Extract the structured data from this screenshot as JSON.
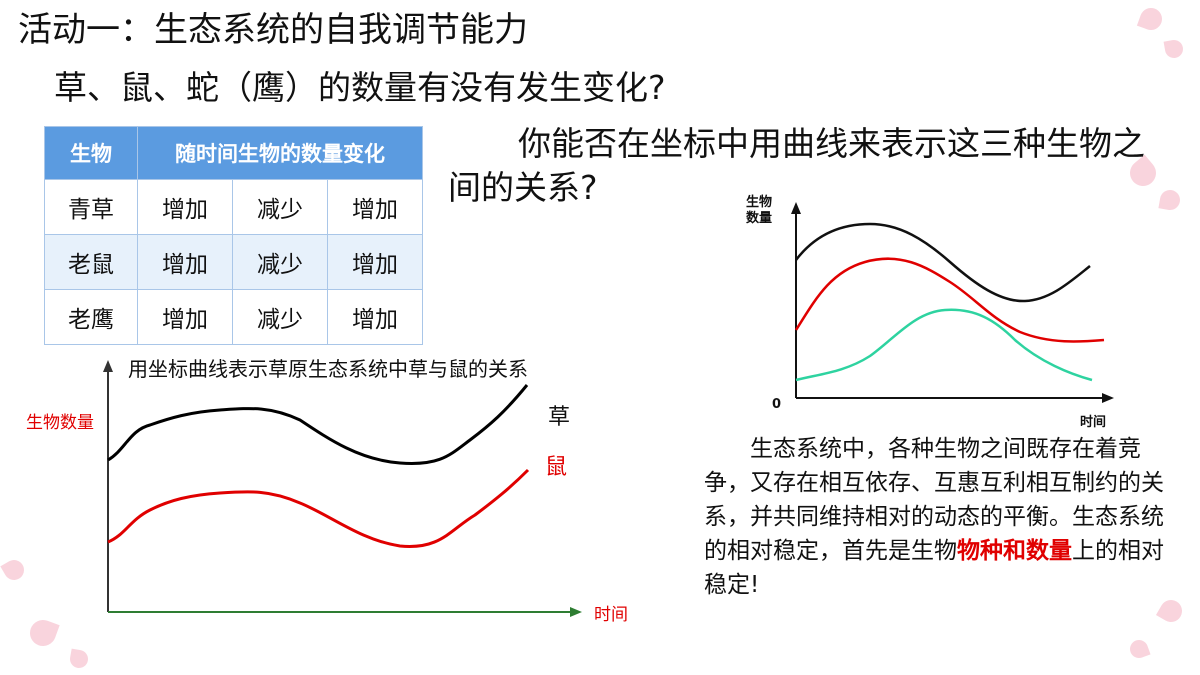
{
  "slide": {
    "title": "活动一：生态系统的自我调节能力",
    "question1": "草、鼠、蛇（鹰）的数量有没有发生变化?",
    "question2": "你能否在坐标中用曲线来表示这三种生物之间的关系?"
  },
  "table": {
    "header": [
      "生物",
      "随时间生物的数量变化"
    ],
    "rows": [
      {
        "name": "青草",
        "changes": [
          "增加",
          "减少",
          "增加"
        ]
      },
      {
        "name": "老鼠",
        "changes": [
          "增加",
          "减少",
          "增加"
        ]
      },
      {
        "name": "老鹰",
        "changes": [
          "增加",
          "减少",
          "增加"
        ]
      }
    ]
  },
  "left_chart": {
    "caption": "用坐标曲线表示草原生态系统中草与鼠的关系",
    "ylabel": "生物数量",
    "xlabel": "时间",
    "series": [
      {
        "name": "草",
        "color": "#000000"
      },
      {
        "name": "鼠",
        "color": "#e00000"
      }
    ]
  },
  "right_chart": {
    "ylabel_line1": "生物",
    "ylabel_line2": "数量",
    "origin": "0",
    "xlabel": "时间",
    "colors": [
      "#111111",
      "#e00000",
      "#2ed3a0"
    ]
  },
  "paragraph": {
    "pre": "生态系统中，各种生物之间既存在着竞争，又存在相互依存、互惠互利相互制约的关系，并共同维持相对的动态的平衡。生态系统的相对稳定，首先是生物",
    "highlight": "物种和数量",
    "post": "上的相对稳定!"
  }
}
